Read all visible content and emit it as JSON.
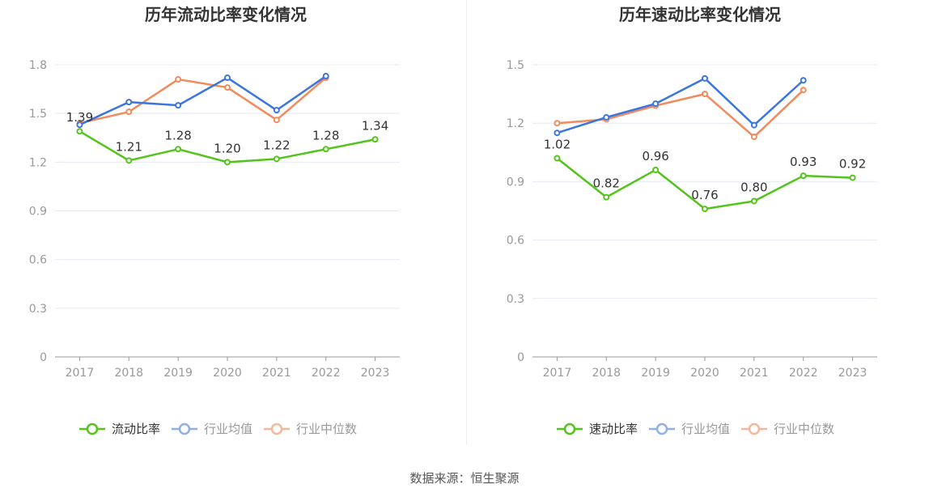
{
  "footer": {
    "source": "数据来源：恒生聚源"
  },
  "chart_data": [
    {
      "type": "line",
      "title": "历年流动比率变化情况",
      "categories": [
        "2017",
        "2018",
        "2019",
        "2020",
        "2021",
        "2022",
        "2023"
      ],
      "ylim": [
        0,
        1.8
      ],
      "yticks": [
        "0",
        "0.3",
        "0.6",
        "0.9",
        "1.2",
        "1.5",
        "1.8"
      ],
      "grid": true,
      "legend_position": "bottom",
      "series": [
        {
          "name": "流动比率",
          "color": "#52c41a",
          "show_labels": true,
          "values": [
            1.39,
            1.21,
            1.28,
            1.2,
            1.22,
            1.28,
            1.34
          ],
          "labels": [
            "1.39",
            "1.21",
            "1.28",
            "1.20",
            "1.22",
            "1.28",
            "1.34"
          ]
        },
        {
          "name": "行业均值",
          "color": "#3a75e0",
          "show_labels": false,
          "values": [
            1.43,
            1.57,
            1.55,
            1.72,
            1.52,
            1.73,
            null
          ]
        },
        {
          "name": "行业中位数",
          "color": "#f28a5c",
          "show_labels": false,
          "values": [
            1.44,
            1.51,
            1.71,
            1.66,
            1.46,
            1.72,
            null
          ]
        }
      ]
    },
    {
      "type": "line",
      "title": "历年速动比率变化情况",
      "categories": [
        "2017",
        "2018",
        "2019",
        "2020",
        "2021",
        "2022",
        "2023"
      ],
      "ylim": [
        0,
        1.5
      ],
      "yticks": [
        "0",
        "0.3",
        "0.6",
        "0.9",
        "1.2",
        "1.5"
      ],
      "grid": true,
      "legend_position": "bottom",
      "series": [
        {
          "name": "速动比率",
          "color": "#52c41a",
          "show_labels": true,
          "values": [
            1.02,
            0.82,
            0.96,
            0.76,
            0.8,
            0.93,
            0.92
          ],
          "labels": [
            "1.02",
            "0.82",
            "0.96",
            "0.76",
            "0.80",
            "0.93",
            "0.92"
          ]
        },
        {
          "name": "行业均值",
          "color": "#3a75e0",
          "show_labels": false,
          "values": [
            1.15,
            1.23,
            1.3,
            1.43,
            1.19,
            1.42,
            null
          ]
        },
        {
          "name": "行业中位数",
          "color": "#f28a5c",
          "show_labels": false,
          "values": [
            1.2,
            1.22,
            1.29,
            1.35,
            1.13,
            1.37,
            null
          ]
        }
      ]
    }
  ]
}
